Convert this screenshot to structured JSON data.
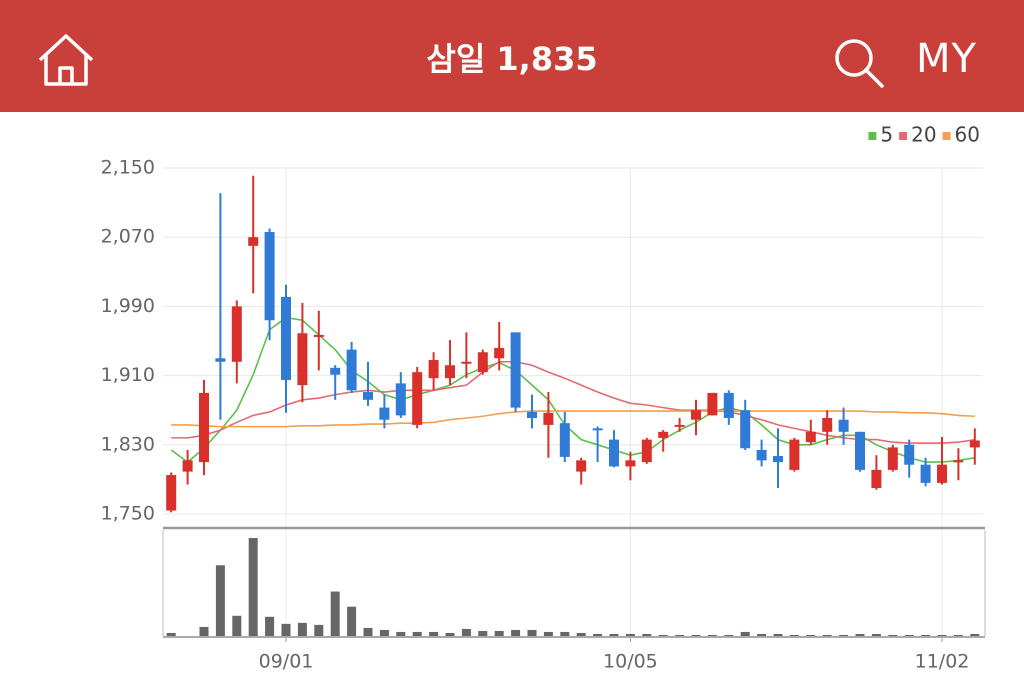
{
  "header": {
    "title": "삼일 1,835",
    "my": "MY"
  },
  "chart_data": {
    "type": "candlestick",
    "categories": [
      null,
      null,
      null,
      null,
      null,
      null,
      null,
      "09/01",
      null,
      null,
      null,
      null,
      null,
      null,
      null,
      null,
      null,
      null,
      null,
      null,
      null,
      null,
      null,
      null,
      null,
      null,
      null,
      null,
      "10/05",
      null,
      null,
      null,
      null,
      null,
      null,
      null,
      null,
      null,
      null,
      null,
      null,
      null,
      null,
      null,
      null,
      null,
      null,
      "11/02",
      null,
      null
    ],
    "open": [
      1754,
      1799,
      1810,
      1930,
      1926,
      2060,
      2076,
      2001,
      1899,
      1955,
      1919,
      1940,
      1891,
      1873,
      1901,
      1853,
      1907,
      1907,
      1924,
      1914,
      1930,
      1960,
      1868,
      1853,
      1855,
      1799,
      1849,
      1836,
      1805,
      1810,
      1838,
      1851,
      1859,
      1864,
      1890,
      1870,
      1824,
      1817,
      1801,
      1833,
      1845,
      1859,
      1845,
      1780,
      1801,
      1830,
      1807,
      1786,
      1810,
      1827
    ],
    "high": [
      1798,
      1824,
      1905,
      2121,
      1997,
      2141,
      2080,
      2015,
      1994,
      1985,
      1922,
      1949,
      1926,
      1888,
      1914,
      1920,
      1937,
      1951,
      1960,
      1940,
      1972,
      1960,
      1888,
      1891,
      1868,
      1815,
      1851,
      1847,
      1822,
      1838,
      1847,
      1861,
      1882,
      1890,
      1893,
      1882,
      1836,
      1849,
      1838,
      1859,
      1870,
      1873,
      1845,
      1818,
      1830,
      1836,
      1815,
      1839,
      1826,
      1849
    ],
    "low": [
      1752,
      1784,
      1795,
      1859,
      1901,
      2005,
      1951,
      1867,
      1879,
      1916,
      1882,
      1890,
      1875,
      1849,
      1861,
      1849,
      1893,
      1899,
      1907,
      1911,
      1916,
      1868,
      1849,
      1815,
      1810,
      1784,
      1810,
      1804,
      1789,
      1808,
      1822,
      1845,
      1841,
      1864,
      1853,
      1824,
      1805,
      1780,
      1799,
      1830,
      1830,
      1830,
      1799,
      1778,
      1799,
      1792,
      1782,
      1784,
      1789,
      1807
    ],
    "close": [
      1795,
      1812,
      1890,
      1926,
      1990,
      2070,
      1974,
      1905,
      1959,
      1957,
      1911,
      1893,
      1882,
      1859,
      1864,
      1914,
      1928,
      1922,
      1926,
      1937,
      1942,
      1873,
      1861,
      1867,
      1816,
      1812,
      1847,
      1805,
      1812,
      1836,
      1845,
      1853,
      1870,
      1890,
      1861,
      1826,
      1812,
      1810,
      1836,
      1845,
      1861,
      1845,
      1801,
      1801,
      1827,
      1807,
      1786,
      1807,
      1812,
      1835
    ],
    "up_color": "#d9302c",
    "down_color": "#2f7bd6",
    "ylim": [
      1750,
      2150
    ],
    "yticks": [
      {
        "value": 1750,
        "label": "1,750"
      },
      {
        "value": 1830,
        "label": "1,830"
      },
      {
        "value": 1910,
        "label": "1,910"
      },
      {
        "value": 1990,
        "label": "1,990"
      },
      {
        "value": 2070,
        "label": "2,070"
      },
      {
        "value": 2150,
        "label": "2,150"
      }
    ],
    "grid": true,
    "series": [
      {
        "name": "5",
        "color": "#5cbf4a",
        "values": [
          1824,
          1810,
          1826,
          1847,
          1870,
          1911,
          1963,
          1977,
          1974,
          1957,
          1940,
          1916,
          1903,
          1888,
          1882,
          1888,
          1893,
          1899,
          1911,
          1919,
          1925,
          1916,
          1899,
          1882,
          1853,
          1836,
          1830,
          1824,
          1818,
          1822,
          1836,
          1847,
          1856,
          1868,
          1873,
          1868,
          1853,
          1836,
          1830,
          1830,
          1836,
          1841,
          1841,
          1830,
          1822,
          1815,
          1810,
          1810,
          1812,
          1815
        ]
      },
      {
        "name": "20",
        "color": "#e06b73",
        "values": [
          1838,
          1838,
          1841,
          1847,
          1856,
          1864,
          1868,
          1876,
          1882,
          1884,
          1888,
          1891,
          1893,
          1891,
          1893,
          1893,
          1893,
          1896,
          1899,
          1914,
          1926,
          1926,
          1922,
          1914,
          1907,
          1899,
          1891,
          1884,
          1878,
          1876,
          1873,
          1870,
          1870,
          1870,
          1868,
          1864,
          1859,
          1853,
          1849,
          1845,
          1841,
          1838,
          1836,
          1836,
          1833,
          1832,
          1832,
          1832,
          1833,
          1836
        ]
      },
      {
        "name": "60",
        "color": "#f0a050",
        "values": [
          1853,
          1853,
          1852,
          1851,
          1851,
          1851,
          1851,
          1851,
          1852,
          1852,
          1853,
          1853,
          1854,
          1854,
          1855,
          1855,
          1856,
          1859,
          1861,
          1863,
          1866,
          1868,
          1869,
          1869,
          1869,
          1869,
          1869,
          1869,
          1869,
          1869,
          1869,
          1869,
          1869,
          1869,
          1869,
          1869,
          1869,
          1869,
          1869,
          1869,
          1869,
          1869,
          1869,
          1868,
          1868,
          1867,
          1867,
          1866,
          1864,
          1863
        ]
      }
    ],
    "volume": {
      "color": "#666666",
      "values": [
        3,
        0,
        9,
        70,
        20,
        97,
        19,
        12,
        13,
        11,
        44,
        29,
        8,
        6,
        4,
        4,
        4,
        3,
        7,
        5,
        5,
        6,
        6,
        4,
        4,
        3,
        2,
        2,
        2,
        2,
        1,
        1,
        1,
        1,
        1,
        4,
        2,
        2,
        1,
        1,
        1,
        1,
        2,
        2,
        1,
        1,
        1,
        1,
        1,
        2
      ]
    }
  }
}
